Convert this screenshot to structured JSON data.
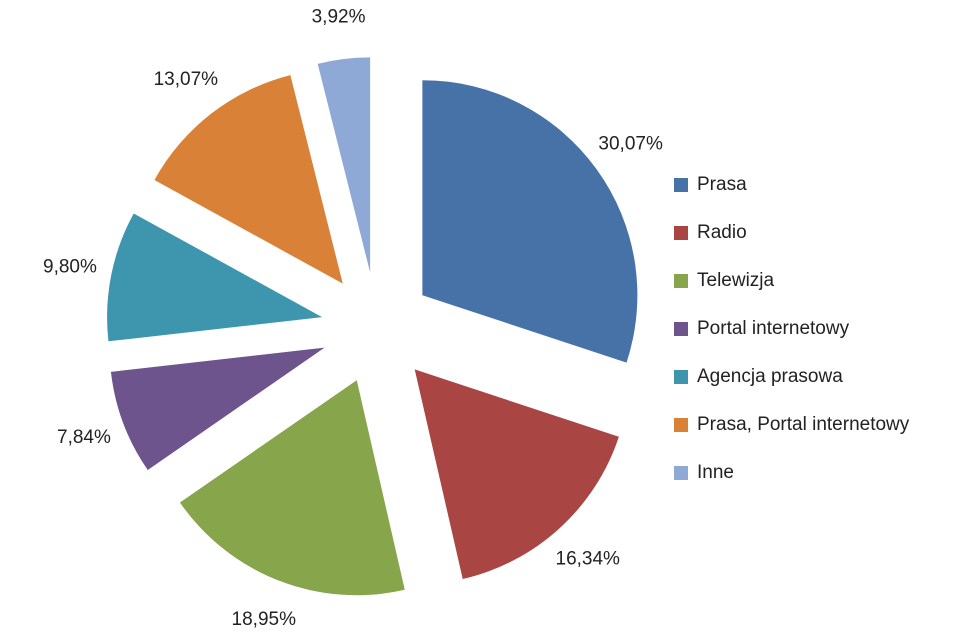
{
  "chart_data": {
    "type": "pie",
    "categories": [
      "Prasa",
      "Radio",
      "Telewizja",
      "Portal internetowy",
      "Agencja prasowa",
      "Prasa, Portal internetowy",
      "Inne"
    ],
    "values": [
      30.07,
      16.34,
      18.95,
      7.84,
      9.8,
      13.07,
      3.92
    ],
    "value_labels": [
      "30,07%",
      "16,34%",
      "18,95%",
      "7,84%",
      "9,80%",
      "13,07%",
      "3,92%"
    ],
    "colors": [
      "#4672a8",
      "#a94543",
      "#87a54a",
      "#6e548d",
      "#3d96ae",
      "#da8138",
      "#8fa9d6"
    ],
    "legend": "right"
  }
}
